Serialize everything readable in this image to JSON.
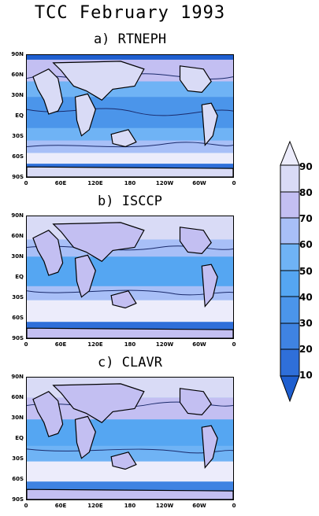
{
  "title": "TCC  February 1993",
  "panels": [
    {
      "id": "a",
      "label": "a) RTNEPH"
    },
    {
      "id": "b",
      "label": "b) ISCCP"
    },
    {
      "id": "c",
      "label": "c) CLAVR"
    }
  ],
  "lat_ticks": [
    "90N",
    "60N",
    "30N",
    "EQ",
    "30S",
    "60S",
    "90S"
  ],
  "lon_ticks": [
    "0",
    "60E",
    "120E",
    "180",
    "120W",
    "60W",
    "0"
  ],
  "colorbar": {
    "labels": [
      "90",
      "80",
      "70",
      "60",
      "50",
      "40",
      "30",
      "20",
      "10"
    ],
    "colors": [
      "#ececfb",
      "#d9dbf6",
      "#c3bff2",
      "#a8bff7",
      "#6fb3f5",
      "#55a6f2",
      "#4b95ea",
      "#3f83e2",
      "#2f6fd9",
      "#1f5fd0"
    ]
  },
  "colors": {
    "ocean": "#5ea8f2",
    "land": "#d9dbf6",
    "cloudy": "#ececfb"
  }
}
